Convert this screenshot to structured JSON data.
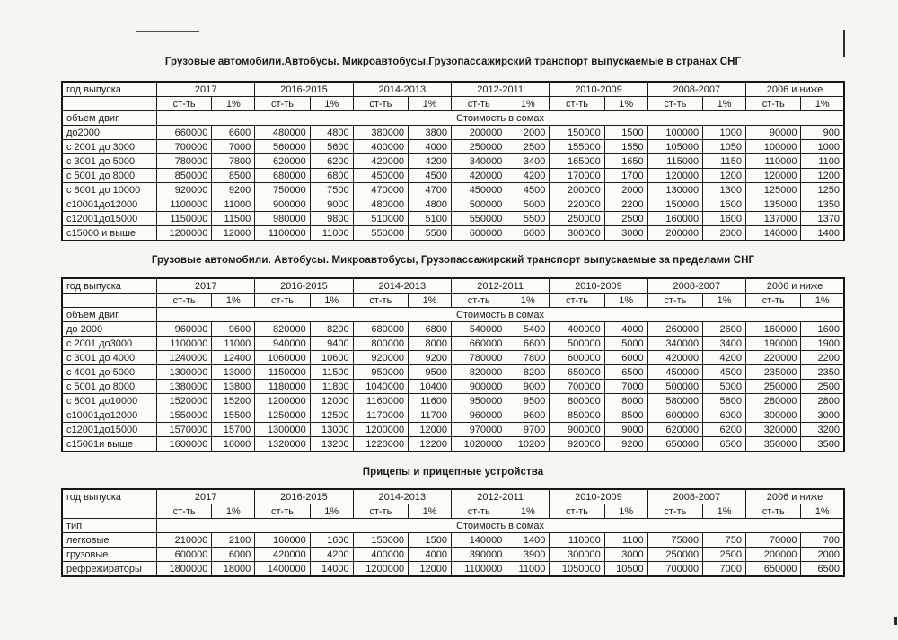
{
  "page": {
    "paper_color": "#f5f5f1",
    "ink_color": "#1b1b1b",
    "border_color": "#1c1c1c"
  },
  "table_header": {
    "col1_label": "год выпуска",
    "year_groups": [
      "2017",
      "2016-2015",
      "2014-2013",
      "2012-2011",
      "2010-2009",
      "2008-2007",
      "2006 и ниже"
    ],
    "sub_labels": [
      "ст-ть",
      "1%"
    ],
    "merged_row_value": "Стоимость в сомах"
  },
  "tables": [
    {
      "title": "Грузовые автомобили.Автобусы. Микроавтобусы.Грузопассажирский транспорт выпускаемые в странах СНГ",
      "section_label": "объем двиг.",
      "rows": [
        {
          "label": "до2000",
          "values": [
            660000,
            6600,
            480000,
            4800,
            380000,
            3800,
            200000,
            2000,
            150000,
            1500,
            100000,
            1000,
            90000,
            900
          ]
        },
        {
          "label": "с 2001 до 3000",
          "values": [
            700000,
            7000,
            560000,
            5600,
            400000,
            4000,
            250000,
            2500,
            155000,
            1550,
            105000,
            1050,
            100000,
            1000
          ]
        },
        {
          "label": "с 3001 до 5000",
          "values": [
            780000,
            7800,
            620000,
            6200,
            420000,
            4200,
            340000,
            3400,
            165000,
            1650,
            115000,
            1150,
            110000,
            1100
          ]
        },
        {
          "label": "с 5001 до 8000",
          "values": [
            850000,
            8500,
            680000,
            6800,
            450000,
            4500,
            420000,
            4200,
            170000,
            1700,
            120000,
            1200,
            120000,
            1200
          ]
        },
        {
          "label": "с 8001 до 10000",
          "values": [
            920000,
            9200,
            750000,
            7500,
            470000,
            4700,
            450000,
            4500,
            200000,
            2000,
            130000,
            1300,
            125000,
            1250
          ]
        },
        {
          "label": "с10001до12000",
          "values": [
            1100000,
            11000,
            900000,
            9000,
            480000,
            4800,
            500000,
            5000,
            220000,
            2200,
            150000,
            1500,
            135000,
            1350
          ]
        },
        {
          "label": "с12001до15000",
          "values": [
            1150000,
            11500,
            980000,
            9800,
            510000,
            5100,
            550000,
            5500,
            250000,
            2500,
            160000,
            1600,
            137000,
            1370
          ]
        },
        {
          "label": "с15000 и выше",
          "values": [
            1200000,
            12000,
            1100000,
            11000,
            550000,
            5500,
            600000,
            6000,
            300000,
            3000,
            200000,
            2000,
            140000,
            1400
          ]
        }
      ]
    },
    {
      "title": "Грузовые автомобили. Автобусы. Микроавтобусы, Грузопассажирский транспорт выпускаемые за пределами СНГ",
      "section_label": "объем двиг.",
      "rows": [
        {
          "label": "до 2000",
          "values": [
            960000,
            9600,
            820000,
            8200,
            680000,
            6800,
            540000,
            5400,
            400000,
            4000,
            260000,
            2600,
            160000,
            1600
          ]
        },
        {
          "label": "с 2001 до3000",
          "values": [
            1100000,
            11000,
            940000,
            9400,
            800000,
            8000,
            660000,
            6600,
            500000,
            5000,
            340000,
            3400,
            190000,
            1900
          ]
        },
        {
          "label": "с 3001 до 4000",
          "values": [
            1240000,
            12400,
            1060000,
            10600,
            920000,
            9200,
            780000,
            7800,
            600000,
            6000,
            420000,
            4200,
            220000,
            2200
          ]
        },
        {
          "label": "с 4001 до 5000",
          "values": [
            1300000,
            13000,
            1150000,
            11500,
            950000,
            9500,
            820000,
            8200,
            650000,
            6500,
            450000,
            4500,
            235000,
            2350
          ]
        },
        {
          "label": "с 5001 до 8000",
          "values": [
            1380000,
            13800,
            1180000,
            11800,
            1040000,
            10400,
            900000,
            9000,
            700000,
            7000,
            500000,
            5000,
            250000,
            2500
          ]
        },
        {
          "label": "с 8001 до10000",
          "values": [
            1520000,
            15200,
            1200000,
            12000,
            1160000,
            11600,
            950000,
            9500,
            800000,
            8000,
            580000,
            5800,
            280000,
            2800
          ]
        },
        {
          "label": "с10001до12000",
          "values": [
            1550000,
            15500,
            1250000,
            12500,
            1170000,
            11700,
            960000,
            9600,
            850000,
            8500,
            600000,
            6000,
            300000,
            3000
          ]
        },
        {
          "label": "с12001до15000",
          "values": [
            1570000,
            15700,
            1300000,
            13000,
            1200000,
            12000,
            970000,
            9700,
            900000,
            9000,
            620000,
            6200,
            320000,
            3200
          ]
        },
        {
          "label": "с15001и выше",
          "values": [
            1600000,
            16000,
            1320000,
            13200,
            1220000,
            12200,
            1020000,
            10200,
            920000,
            9200,
            650000,
            6500,
            350000,
            3500
          ]
        }
      ]
    },
    {
      "title": "Прицепы и прицепные устройства",
      "section_label": "тип",
      "rows": [
        {
          "label": "легковые",
          "values": [
            210000,
            2100,
            160000,
            1600,
            150000,
            1500,
            140000,
            1400,
            110000,
            1100,
            75000,
            750,
            70000,
            700
          ]
        },
        {
          "label": "грузовые",
          "values": [
            600000,
            6000,
            420000,
            4200,
            400000,
            4000,
            390000,
            3900,
            300000,
            3000,
            250000,
            2500,
            200000,
            2000
          ]
        },
        {
          "label": "рефрежираторы",
          "values": [
            1800000,
            18000,
            1400000,
            14000,
            1200000,
            12000,
            1100000,
            11000,
            1050000,
            10500,
            700000,
            7000,
            650000,
            6500
          ]
        }
      ]
    }
  ]
}
